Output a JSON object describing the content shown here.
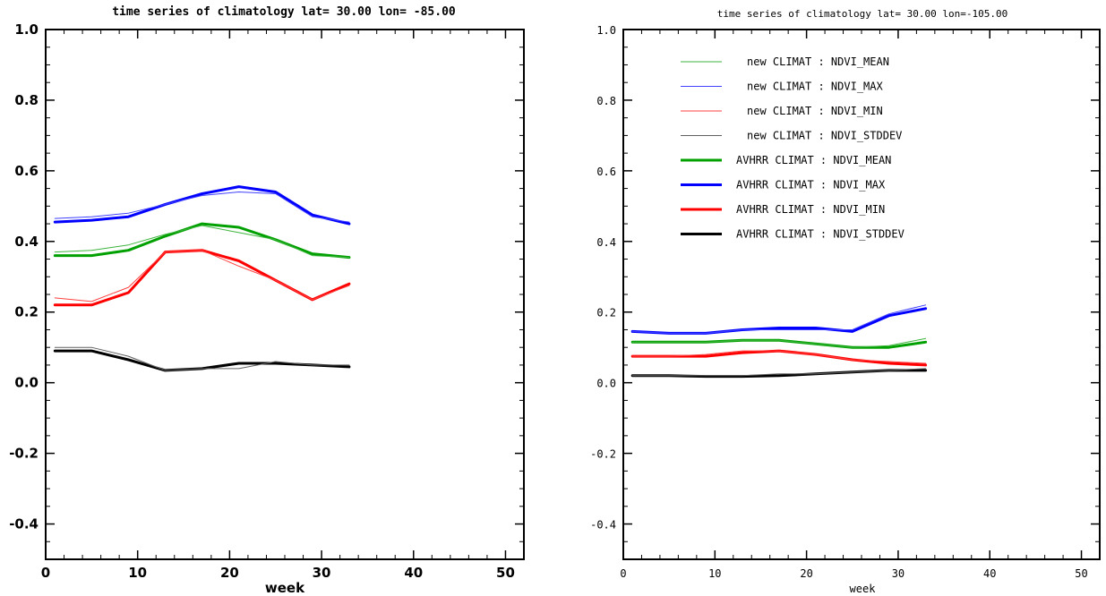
{
  "chart_data": [
    {
      "type": "line",
      "title": "time series of climatology  lat=  30.00 lon= -85.00",
      "xlabel": "week",
      "ylabel": "",
      "xlim": [
        0,
        52
      ],
      "ylim": [
        -0.5,
        1.0
      ],
      "xticks": [
        "0",
        "10",
        "20",
        "30",
        "40",
        "50"
      ],
      "yticks": [
        "-0.4",
        "-0.2",
        "0.0",
        "0.2",
        "0.4",
        "0.6",
        "0.8",
        "1.0"
      ],
      "grid": false,
      "legend": "none",
      "series": [
        {
          "key": "new_mean",
          "color": "#3cb43c",
          "width": 1,
          "x": [
            1,
            5,
            9,
            13,
            17,
            21,
            25,
            29,
            33
          ],
          "y": [
            0.37,
            0.375,
            0.39,
            0.42,
            0.445,
            0.425,
            0.405,
            0.36,
            0.355
          ]
        },
        {
          "key": "new_max",
          "color": "#4040ff",
          "width": 1,
          "x": [
            1,
            5,
            9,
            13,
            17,
            21,
            25,
            29,
            33
          ],
          "y": [
            0.465,
            0.47,
            0.48,
            0.505,
            0.53,
            0.54,
            0.535,
            0.47,
            0.455
          ]
        },
        {
          "key": "new_min",
          "color": "#ff4040",
          "width": 1,
          "x": [
            1,
            5,
            9,
            13,
            17,
            21,
            25,
            29,
            33
          ],
          "y": [
            0.24,
            0.23,
            0.27,
            0.37,
            0.375,
            0.33,
            0.29,
            0.235,
            0.275
          ]
        },
        {
          "key": "new_std",
          "color": "#606060",
          "width": 1,
          "x": [
            1,
            5,
            9,
            13,
            17,
            21,
            25,
            29,
            33
          ],
          "y": [
            0.1,
            0.1,
            0.075,
            0.035,
            0.04,
            0.04,
            0.06,
            0.05,
            0.05
          ]
        },
        {
          "key": "avhrr_mean",
          "color": "#00a000",
          "width": 3,
          "x": [
            1,
            5,
            9,
            13,
            17,
            21,
            25,
            29,
            33
          ],
          "y": [
            0.36,
            0.36,
            0.375,
            0.415,
            0.45,
            0.44,
            0.405,
            0.365,
            0.355
          ]
        },
        {
          "key": "avhrr_max",
          "color": "#0000ff",
          "width": 3,
          "x": [
            1,
            5,
            9,
            13,
            17,
            21,
            25,
            29,
            33
          ],
          "y": [
            0.455,
            0.46,
            0.47,
            0.505,
            0.535,
            0.555,
            0.54,
            0.475,
            0.45
          ]
        },
        {
          "key": "avhrr_min",
          "color": "#ff0000",
          "width": 3,
          "x": [
            1,
            5,
            9,
            13,
            17,
            21,
            25,
            29,
            33
          ],
          "y": [
            0.22,
            0.22,
            0.255,
            0.37,
            0.375,
            0.345,
            0.29,
            0.235,
            0.28
          ]
        },
        {
          "key": "avhrr_std",
          "color": "#000000",
          "width": 3,
          "x": [
            1,
            5,
            9,
            13,
            17,
            21,
            25,
            29,
            33
          ],
          "y": [
            0.09,
            0.09,
            0.065,
            0.035,
            0.04,
            0.055,
            0.055,
            0.05,
            0.045
          ]
        }
      ]
    },
    {
      "type": "line",
      "title": "time series of climatology  lat=  30.00 lon=-105.00",
      "xlabel": "week",
      "ylabel": "",
      "xlim": [
        0,
        52
      ],
      "ylim": [
        -0.5,
        1.0
      ],
      "xticks": [
        "0",
        "10",
        "20",
        "30",
        "40",
        "50"
      ],
      "yticks": [
        "-0.4",
        "-0.2",
        "0.0",
        "0.2",
        "0.4",
        "0.6",
        "0.8",
        "1.0"
      ],
      "grid": false,
      "legend": "top-left",
      "series": [
        {
          "key": "new_mean",
          "name": "new CLIMAT : NDVI_MEAN",
          "color": "#3cb43c",
          "width": 1,
          "x": [
            1,
            5,
            9,
            13,
            17,
            21,
            25,
            29,
            33
          ],
          "y": [
            0.115,
            0.115,
            0.115,
            0.12,
            0.12,
            0.11,
            0.1,
            0.105,
            0.125
          ]
        },
        {
          "key": "new_max",
          "name": "new CLIMAT : NDVI_MAX",
          "color": "#4040ff",
          "width": 1,
          "x": [
            1,
            5,
            9,
            13,
            17,
            21,
            25,
            29,
            33
          ],
          "y": [
            0.145,
            0.14,
            0.14,
            0.15,
            0.15,
            0.15,
            0.15,
            0.195,
            0.22
          ]
        },
        {
          "key": "new_min",
          "name": "new CLIMAT : NDVI_MIN",
          "color": "#ff4040",
          "width": 1,
          "x": [
            1,
            5,
            9,
            13,
            17,
            21,
            25,
            29,
            33
          ],
          "y": [
            0.075,
            0.075,
            0.08,
            0.09,
            0.09,
            0.08,
            0.065,
            0.06,
            0.055
          ]
        },
        {
          "key": "new_std",
          "name": "new CLIMAT : NDVI_STDDEV",
          "color": "#606060",
          "width": 1,
          "x": [
            1,
            5,
            9,
            13,
            17,
            21,
            25,
            29,
            33
          ],
          "y": [
            0.02,
            0.02,
            0.02,
            0.02,
            0.025,
            0.025,
            0.03,
            0.035,
            0.04
          ]
        },
        {
          "key": "avhrr_mean",
          "name": "AVHRR CLIMAT : NDVI_MEAN",
          "color": "#00a000",
          "width": 3,
          "x": [
            1,
            5,
            9,
            13,
            17,
            21,
            25,
            29,
            33
          ],
          "y": [
            0.115,
            0.115,
            0.115,
            0.12,
            0.12,
            0.11,
            0.1,
            0.1,
            0.115
          ]
        },
        {
          "key": "avhrr_max",
          "name": "AVHRR CLIMAT : NDVI_MAX",
          "color": "#0000ff",
          "width": 3,
          "x": [
            1,
            5,
            9,
            13,
            17,
            21,
            25,
            29,
            33
          ],
          "y": [
            0.145,
            0.14,
            0.14,
            0.15,
            0.155,
            0.155,
            0.145,
            0.19,
            0.21
          ]
        },
        {
          "key": "avhrr_min",
          "name": "AVHRR CLIMAT : NDVI_MIN",
          "color": "#ff0000",
          "width": 3,
          "x": [
            1,
            5,
            9,
            13,
            17,
            21,
            25,
            29,
            33
          ],
          "y": [
            0.075,
            0.075,
            0.075,
            0.085,
            0.09,
            0.08,
            0.065,
            0.055,
            0.05
          ]
        },
        {
          "key": "avhrr_std",
          "name": "AVHRR CLIMAT : NDVI_STDDEV",
          "color": "#000000",
          "width": 3,
          "x": [
            1,
            5,
            9,
            13,
            17,
            21,
            25,
            29,
            33
          ],
          "y": [
            0.02,
            0.02,
            0.018,
            0.018,
            0.02,
            0.025,
            0.03,
            0.035,
            0.035
          ]
        }
      ]
    }
  ]
}
